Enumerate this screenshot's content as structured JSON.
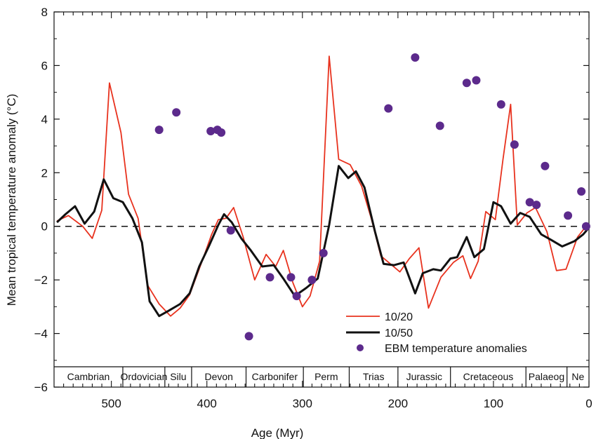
{
  "chart_data": {
    "type": "line",
    "title": "",
    "xlabel": "Age (Myr)",
    "ylabel": "Mean tropical temperature anomaly (°C)",
    "xlim": [
      560,
      0
    ],
    "ylim": [
      -6,
      8
    ],
    "x_ticks": [
      500,
      400,
      300,
      200,
      100,
      0
    ],
    "y_ticks": [
      8,
      6,
      4,
      2,
      0,
      -2,
      -4,
      -6
    ],
    "x_tick_labels": [
      "500",
      "400",
      "300",
      "200",
      "100",
      "0"
    ],
    "y_tick_labels": [
      "8",
      "6",
      "4",
      "2",
      "0",
      "−2",
      "−4",
      "−6"
    ],
    "reference_line": {
      "y": 0,
      "style": "dashed"
    },
    "legend": {
      "position": "bottom-right",
      "entries": [
        "10/20",
        "10/50",
        "EBM temperature anomalies"
      ]
    },
    "series": [
      {
        "name": "10/20",
        "type": "line",
        "color": "#e8321e",
        "points": [
          [
            557,
            0.2
          ],
          [
            545,
            0.4
          ],
          [
            530,
            0
          ],
          [
            520,
            -0.45
          ],
          [
            510,
            0.6
          ],
          [
            502,
            5.35
          ],
          [
            490,
            3.5
          ],
          [
            482,
            1.2
          ],
          [
            472,
            0.3
          ],
          [
            462,
            -2.2
          ],
          [
            450,
            -2.9
          ],
          [
            438,
            -3.35
          ],
          [
            428,
            -3.05
          ],
          [
            418,
            -2.55
          ],
          [
            405,
            -1.3
          ],
          [
            395,
            -0.3
          ],
          [
            388,
            0.25
          ],
          [
            380,
            0.3
          ],
          [
            372,
            0.7
          ],
          [
            362,
            -0.4
          ],
          [
            350,
            -2
          ],
          [
            338,
            -1.05
          ],
          [
            328,
            -1.5
          ],
          [
            320,
            -0.9
          ],
          [
            310,
            -2.1
          ],
          [
            300,
            -3
          ],
          [
            292,
            -2.6
          ],
          [
            282,
            -1.3
          ],
          [
            272,
            6.35
          ],
          [
            262,
            2.5
          ],
          [
            250,
            2.3
          ],
          [
            238,
            1.5
          ],
          [
            228,
            0.3
          ],
          [
            218,
            -1.1
          ],
          [
            208,
            -1.4
          ],
          [
            198,
            -1.7
          ],
          [
            188,
            -1.2
          ],
          [
            178,
            -0.8
          ],
          [
            168,
            -3.05
          ],
          [
            155,
            -1.9
          ],
          [
            142,
            -1.35
          ],
          [
            132,
            -1.1
          ],
          [
            124,
            -1.95
          ],
          [
            116,
            -1.3
          ],
          [
            108,
            0.55
          ],
          [
            98,
            0.25
          ],
          [
            90,
            2.5
          ],
          [
            82,
            4.55
          ],
          [
            75,
            0.05
          ],
          [
            65,
            0.5
          ],
          [
            56,
            0.7
          ],
          [
            44,
            -0.2
          ],
          [
            34,
            -1.65
          ],
          [
            24,
            -1.6
          ],
          [
            12,
            -0.4
          ],
          [
            3,
            0
          ]
        ]
      },
      {
        "name": "10/50",
        "type": "line",
        "color": "#111111",
        "points": [
          [
            557,
            0.15
          ],
          [
            548,
            0.45
          ],
          [
            538,
            0.75
          ],
          [
            528,
            0.1
          ],
          [
            518,
            0.55
          ],
          [
            508,
            1.75
          ],
          [
            498,
            1.05
          ],
          [
            488,
            0.9
          ],
          [
            478,
            0.3
          ],
          [
            468,
            -0.6
          ],
          [
            460,
            -2.8
          ],
          [
            450,
            -3.35
          ],
          [
            440,
            -3.15
          ],
          [
            428,
            -2.9
          ],
          [
            418,
            -2.5
          ],
          [
            408,
            -1.5
          ],
          [
            398,
            -0.75
          ],
          [
            388,
            0.05
          ],
          [
            382,
            0.45
          ],
          [
            374,
            0.15
          ],
          [
            364,
            -0.45
          ],
          [
            354,
            -0.9
          ],
          [
            342,
            -1.5
          ],
          [
            330,
            -1.45
          ],
          [
            320,
            -1.95
          ],
          [
            308,
            -2.6
          ],
          [
            296,
            -2.3
          ],
          [
            284,
            -1.95
          ],
          [
            272,
            0.05
          ],
          [
            262,
            2.25
          ],
          [
            252,
            1.8
          ],
          [
            244,
            2.05
          ],
          [
            235,
            1.45
          ],
          [
            224,
            -0.2
          ],
          [
            215,
            -1.4
          ],
          [
            204,
            -1.45
          ],
          [
            194,
            -1.35
          ],
          [
            182,
            -2.5
          ],
          [
            174,
            -1.75
          ],
          [
            163,
            -1.6
          ],
          [
            155,
            -1.65
          ],
          [
            145,
            -1.2
          ],
          [
            138,
            -1.15
          ],
          [
            128,
            -0.4
          ],
          [
            120,
            -1.15
          ],
          [
            110,
            -0.85
          ],
          [
            100,
            0.9
          ],
          [
            92,
            0.75
          ],
          [
            82,
            0.1
          ],
          [
            72,
            0.5
          ],
          [
            62,
            0.35
          ],
          [
            50,
            -0.3
          ],
          [
            40,
            -0.5
          ],
          [
            28,
            -0.75
          ],
          [
            15,
            -0.55
          ],
          [
            6,
            -0.3
          ],
          [
            0,
            -0.05
          ]
        ]
      },
      {
        "name": "EBM temperature anomalies",
        "type": "scatter",
        "color": "#5c2a8c",
        "points": [
          [
            450,
            3.6
          ],
          [
            432,
            4.25
          ],
          [
            396,
            3.55
          ],
          [
            389,
            3.6
          ],
          [
            385,
            3.5
          ],
          [
            375,
            -0.15
          ],
          [
            356,
            -4.1
          ],
          [
            334,
            -1.9
          ],
          [
            312,
            -1.9
          ],
          [
            306,
            -2.6
          ],
          [
            290,
            -2
          ],
          [
            278,
            -1
          ],
          [
            210,
            4.4
          ],
          [
            182,
            6.3
          ],
          [
            156,
            3.75
          ],
          [
            128,
            5.35
          ],
          [
            118,
            5.45
          ],
          [
            92,
            4.55
          ],
          [
            78,
            3.05
          ],
          [
            62,
            0.9
          ],
          [
            55,
            0.8
          ],
          [
            46,
            2.25
          ],
          [
            22,
            0.4
          ],
          [
            8,
            1.3
          ],
          [
            3,
            0
          ]
        ]
      }
    ],
    "geologic_periods": [
      {
        "name": "Cambrian",
        "start": 560,
        "end": 488
      },
      {
        "name": "Ordovician",
        "start": 488,
        "end": 444
      },
      {
        "name": "Silu",
        "start": 444,
        "end": 416
      },
      {
        "name": "Devon",
        "start": 416,
        "end": 359
      },
      {
        "name": "Carbonifer",
        "start": 359,
        "end": 299
      },
      {
        "name": "Perm",
        "start": 299,
        "end": 251
      },
      {
        "name": "Trias",
        "start": 251,
        "end": 200
      },
      {
        "name": "Jurassic",
        "start": 200,
        "end": 145
      },
      {
        "name": "Cretaceous",
        "start": 145,
        "end": 66
      },
      {
        "name": "Palaeog",
        "start": 66,
        "end": 23
      },
      {
        "name": "Ne",
        "start": 23,
        "end": 0
      }
    ]
  }
}
